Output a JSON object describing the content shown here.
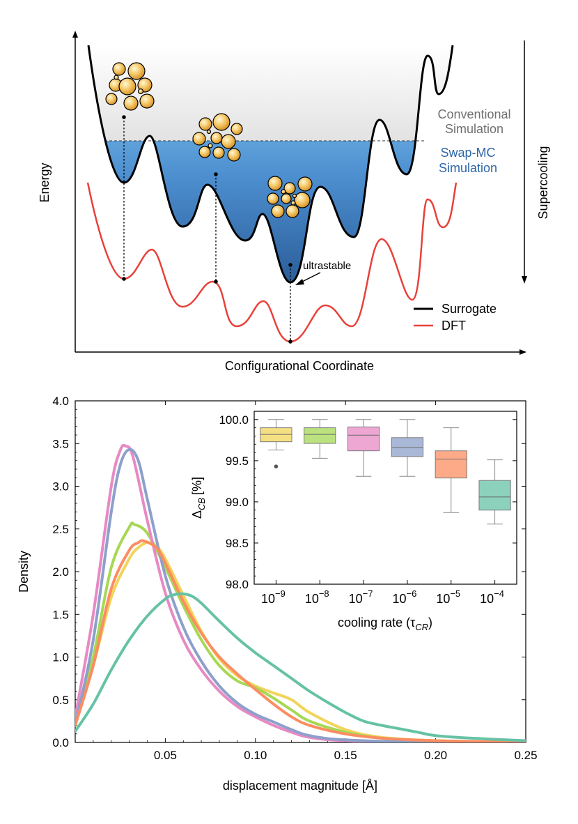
{
  "top_panel": {
    "y_label": "Energy",
    "x_label": "Configurational Coordinate",
    "conventional_line1": "Conventional",
    "conventional_line2": "Simulation",
    "swap_line1": "Swap-MC",
    "swap_line2": "Simulation",
    "supercooling_label": "Supercooling",
    "ultrastable_label": "ultrastable",
    "legend": [
      {
        "label": "Surrogate",
        "color": "#000000"
      },
      {
        "label": "DFT",
        "color": "#e8413a"
      }
    ]
  },
  "chart_data": [
    {
      "type": "line",
      "title": "",
      "xlabel": "displacement magnitude [Å]",
      "ylabel": "Density",
      "xlim": [
        0.0,
        0.25
      ],
      "ylim": [
        0.0,
        4.0
      ],
      "xticks": [
        0.05,
        0.1,
        0.15,
        0.2,
        0.25
      ],
      "xtick_labels": [
        "0.05",
        "0.10",
        "0.15",
        "0.20",
        "0.25"
      ],
      "yticks": [
        0.0,
        0.5,
        1.0,
        1.5,
        2.0,
        2.5,
        3.0,
        3.5,
        4.0
      ],
      "ytick_labels": [
        "0.0",
        "0.5",
        "1.0",
        "1.5",
        "2.0",
        "2.5",
        "3.0",
        "3.5",
        "4.0"
      ],
      "series": [
        {
          "name": "1e-9",
          "color": "#f2d45a",
          "x": [
            0.0,
            0.01,
            0.02,
            0.03,
            0.035,
            0.04,
            0.045,
            0.05,
            0.06,
            0.07,
            0.08,
            0.09,
            0.1,
            0.11,
            0.12,
            0.13,
            0.15,
            0.17,
            0.2,
            0.25
          ],
          "y": [
            0.25,
            0.9,
            1.7,
            2.15,
            2.28,
            2.34,
            2.3,
            2.15,
            1.72,
            1.3,
            0.98,
            0.78,
            0.66,
            0.58,
            0.5,
            0.35,
            0.15,
            0.06,
            0.02,
            0.0
          ]
        },
        {
          "name": "1e-8",
          "color": "#a6d854",
          "x": [
            0.0,
            0.01,
            0.02,
            0.03,
            0.033,
            0.04,
            0.05,
            0.06,
            0.07,
            0.08,
            0.09,
            0.1,
            0.11,
            0.12,
            0.13,
            0.15,
            0.17,
            0.2,
            0.25
          ],
          "y": [
            0.25,
            1.0,
            2.05,
            2.52,
            2.55,
            2.45,
            2.05,
            1.6,
            1.2,
            0.9,
            0.72,
            0.64,
            0.52,
            0.38,
            0.25,
            0.12,
            0.05,
            0.02,
            0.0
          ]
        },
        {
          "name": "1e-7",
          "color": "#e78ac3",
          "x": [
            0.0,
            0.01,
            0.02,
            0.025,
            0.028,
            0.032,
            0.04,
            0.05,
            0.06,
            0.07,
            0.08,
            0.09,
            0.1,
            0.11,
            0.12,
            0.13,
            0.15,
            0.2,
            0.25
          ],
          "y": [
            0.3,
            1.5,
            3.0,
            3.42,
            3.47,
            3.35,
            2.6,
            1.75,
            1.2,
            0.85,
            0.6,
            0.42,
            0.3,
            0.2,
            0.12,
            0.06,
            0.02,
            0.0,
            0.0
          ]
        },
        {
          "name": "1e-6",
          "color": "#8da0cb",
          "x": [
            0.0,
            0.01,
            0.02,
            0.025,
            0.03,
            0.035,
            0.04,
            0.05,
            0.06,
            0.07,
            0.08,
            0.09,
            0.1,
            0.11,
            0.12,
            0.13,
            0.15,
            0.2,
            0.25
          ],
          "y": [
            0.2,
            1.2,
            2.7,
            3.25,
            3.43,
            3.3,
            2.85,
            1.95,
            1.35,
            0.95,
            0.66,
            0.46,
            0.33,
            0.24,
            0.15,
            0.08,
            0.03,
            0.0,
            0.0
          ]
        },
        {
          "name": "1e-5",
          "color": "#fc8d62",
          "x": [
            0.0,
            0.01,
            0.02,
            0.03,
            0.035,
            0.038,
            0.045,
            0.05,
            0.06,
            0.07,
            0.08,
            0.09,
            0.1,
            0.11,
            0.12,
            0.13,
            0.15,
            0.17,
            0.2,
            0.25
          ],
          "y": [
            0.2,
            0.9,
            1.8,
            2.25,
            2.34,
            2.36,
            2.28,
            2.1,
            1.65,
            1.28,
            1.0,
            0.8,
            0.62,
            0.45,
            0.3,
            0.2,
            0.1,
            0.05,
            0.02,
            0.0
          ]
        },
        {
          "name": "1e-4",
          "color": "#66c2a5",
          "x": [
            0.0,
            0.01,
            0.02,
            0.03,
            0.04,
            0.05,
            0.055,
            0.06,
            0.065,
            0.07,
            0.08,
            0.09,
            0.1,
            0.11,
            0.12,
            0.13,
            0.14,
            0.15,
            0.16,
            0.17,
            0.18,
            0.19,
            0.2,
            0.22,
            0.25
          ],
          "y": [
            0.13,
            0.45,
            0.85,
            1.2,
            1.48,
            1.68,
            1.73,
            1.74,
            1.71,
            1.63,
            1.42,
            1.22,
            1.05,
            0.9,
            0.75,
            0.6,
            0.47,
            0.35,
            0.25,
            0.2,
            0.16,
            0.12,
            0.08,
            0.05,
            0.02
          ]
        }
      ]
    },
    {
      "type": "box",
      "title": "",
      "xlabel": "cooling rate (τ",
      "xlabel_sub": "CR",
      "xlabel_close": ")",
      "ylabel": "Δ",
      "ylabel_sub": "CB",
      "ylabel_unit": "[%]",
      "ylim": [
        98.0,
        100.1
      ],
      "yticks": [
        98.0,
        98.5,
        99.0,
        99.5,
        100.0
      ],
      "ytick_labels": [
        "98.0",
        "98.5",
        "99.0",
        "99.5",
        "100.0"
      ],
      "categories": [
        {
          "base": "10",
          "exp": "−9"
        },
        {
          "base": "10",
          "exp": "−8"
        },
        {
          "base": "10",
          "exp": "−7"
        },
        {
          "base": "10",
          "exp": "−6"
        },
        {
          "base": "10",
          "exp": "−5"
        },
        {
          "base": "10",
          "exp": "−4"
        }
      ],
      "boxes": [
        {
          "color": "#f2d45a",
          "whislo": 99.63,
          "q1": 99.73,
          "med": 99.82,
          "q3": 99.9,
          "whishi": 100.0,
          "fliers": [
            99.43
          ]
        },
        {
          "color": "#a6d854",
          "whislo": 99.53,
          "q1": 99.71,
          "med": 99.82,
          "q3": 99.9,
          "whishi": 100.0,
          "fliers": []
        },
        {
          "color": "#e78ac3",
          "whislo": 99.31,
          "q1": 99.62,
          "med": 99.81,
          "q3": 99.91,
          "whishi": 100.0,
          "fliers": []
        },
        {
          "color": "#8da0cb",
          "whislo": 99.31,
          "q1": 99.55,
          "med": 99.66,
          "q3": 99.78,
          "whishi": 100.0,
          "fliers": []
        },
        {
          "color": "#fc8d62",
          "whislo": 98.87,
          "q1": 99.29,
          "med": 99.52,
          "q3": 99.62,
          "whishi": 99.9,
          "fliers": []
        },
        {
          "color": "#66c2a5",
          "whislo": 98.73,
          "q1": 98.9,
          "med": 99.06,
          "q3": 99.26,
          "whishi": 99.51,
          "fliers": []
        }
      ]
    }
  ]
}
